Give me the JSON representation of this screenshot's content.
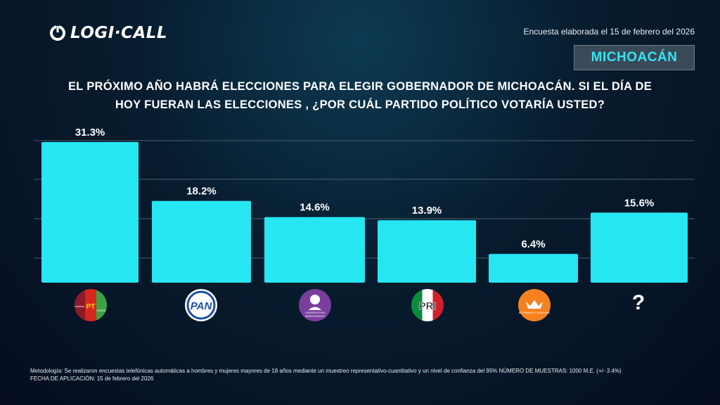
{
  "brand": {
    "name": "LOGI·CALL"
  },
  "header": {
    "survey_date": "Encuesta elaborada el 15 de febrero del 2026",
    "state": "MICHOACÁN"
  },
  "question": {
    "line1": "EL PRÓXIMO AÑO HABRÁ ELECCIONES PARA ELEGIR GOBERNADOR DE MICHOACÁN. SI EL DÍA DE",
    "line2": "HOY FUERAN LAS ELECCIONES , ¿POR CUÁL PARTIDO POLÍTICO VOTARÍA USTED?"
  },
  "colors": {
    "bar": "#27e6f3",
    "accent": "#36e3f2",
    "grid": "#4a5f70"
  },
  "chart_data": {
    "type": "bar",
    "categories": [
      "morena-pt-pvem",
      "pan",
      "candidatura-independiente",
      "pri",
      "movimiento-ciudadano",
      "?"
    ],
    "values": [
      31.3,
      18.2,
      14.6,
      13.9,
      6.4,
      15.6
    ],
    "data_labels": [
      "31.3%",
      "18.2%",
      "14.6%",
      "13.9%",
      "6.4%",
      "15.6%"
    ],
    "ylim": [
      0,
      36
    ],
    "grid": true
  },
  "party_icons": {
    "morena_pt": {
      "left": "morena",
      "mid": "PT",
      "right": "VERDE"
    },
    "pan": "PAN",
    "independiente": {
      "top": "CANDIDATURA",
      "bottom": "INDEPENDIENTE"
    },
    "pri": "PRI",
    "mc": "MOVIMIENTO CIUDADANO",
    "unknown": "?"
  },
  "footer": {
    "methodology": "Metodología: Se realizaron encuestas telefónicas automáticas a hombres y mujeres mayores de 18 años mediante un muestreo representativo-cuantitativo y un nivel de confianza del 95% NÚMERO DE MUESTRAS: 1000 M.E. (+/- 3.4%)",
    "application_date": "FECHA DE APLICACIÓN: 15 de febrero del 2026"
  }
}
